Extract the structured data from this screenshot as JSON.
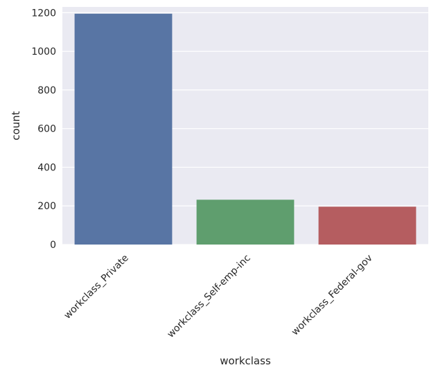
{
  "chart_data": {
    "type": "bar",
    "categories": [
      "workclass_Private",
      "workclass_Self-emp-inc",
      "workclass_Federal-gov"
    ],
    "values": [
      1195,
      232,
      196
    ],
    "xlabel": "workclass",
    "ylabel": "count",
    "ylim": [
      0,
      1230
    ],
    "yticks": [
      0,
      200,
      400,
      600,
      800,
      1000,
      1200
    ],
    "ytick_labels": [
      "0",
      "200",
      "400",
      "600",
      "800",
      "1000",
      "1200"
    ],
    "grid": true,
    "colors": [
      "#5875a4",
      "#5f9e6e",
      "#b55d60"
    ],
    "background": "#eaeaf2",
    "grid_color": "#ffffff",
    "text_color": "#262626"
  }
}
